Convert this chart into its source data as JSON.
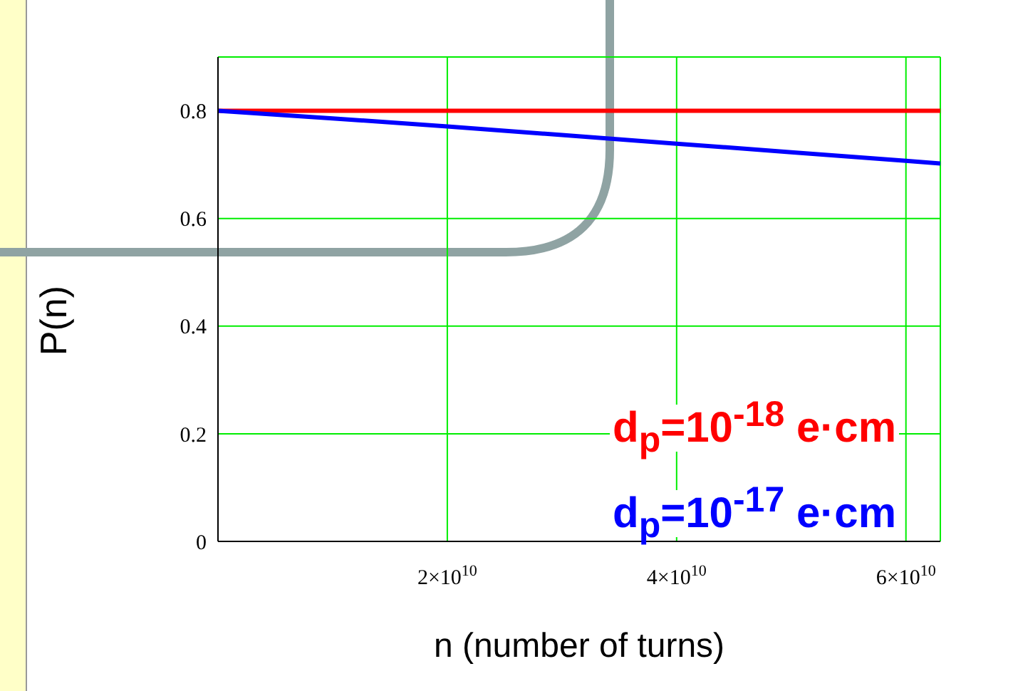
{
  "chart_data": {
    "type": "line",
    "xlabel": "n (number of turns)",
    "ylabel": "P(n)",
    "x": [
      0,
      10000000000,
      20000000000,
      30000000000,
      40000000000,
      50000000000,
      60000000000,
      63000000000
    ],
    "series": [
      {
        "name": "d$_{p}$=10$^{-18}$ e·cm",
        "color": "#ff0000",
        "values": [
          0.8,
          0.8,
          0.8,
          0.8,
          0.8,
          0.8,
          0.8,
          0.8
        ]
      },
      {
        "name": "d$_{p}$=10$^{-17}$ e·cm",
        "color": "#0000ff",
        "values": [
          0.8,
          0.786,
          0.771,
          0.755,
          0.739,
          0.723,
          0.707,
          0.702
        ]
      }
    ],
    "xlim": [
      0,
      63000000000
    ],
    "xticks": [
      {
        "value": 20000000000,
        "label": "2×10$^{10}$"
      },
      {
        "value": 40000000000,
        "label": "4×10$^{10}$"
      },
      {
        "value": 60000000000,
        "label": "6×10$^{10}$"
      }
    ],
    "ylim": [
      0,
      0.9
    ],
    "yticks": [
      0,
      0.2,
      0.4,
      0.6,
      0.8
    ],
    "grid": true,
    "legend": "bottom right",
    "marker": "none",
    "line_style": "solid"
  }
}
